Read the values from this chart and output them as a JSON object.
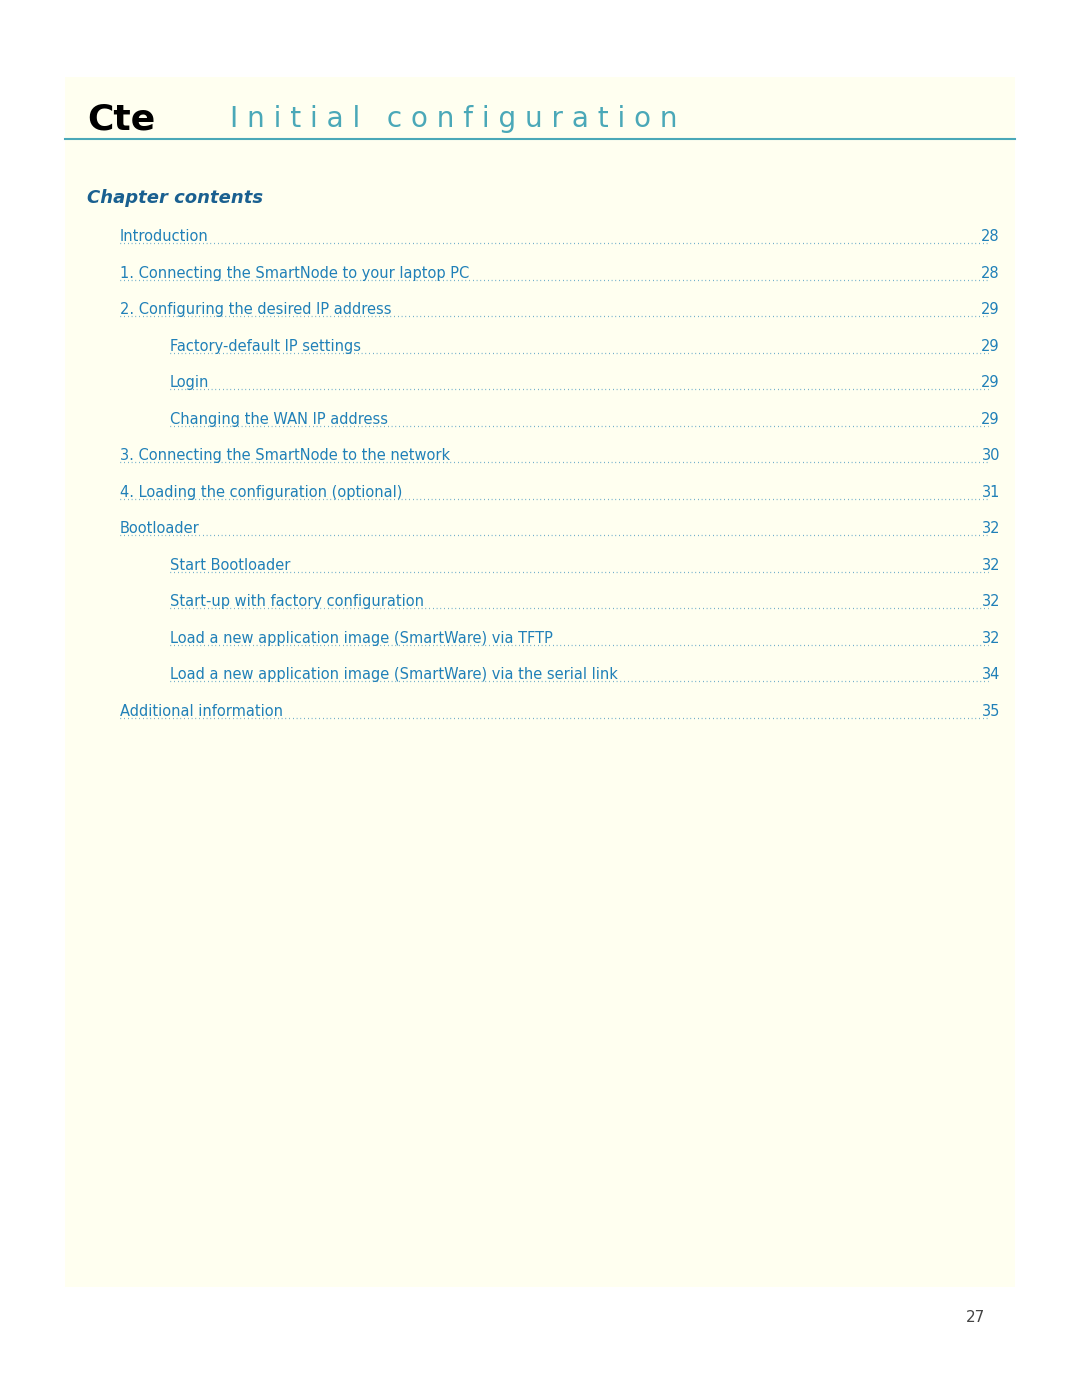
{
  "page_bg": "#ffffff",
  "content_bg": "#fffff0",
  "header_line_color": "#4aa8b8",
  "title_cte_color": "#000000",
  "title_main_color": "#4aa8b8",
  "title_cte_text": "Cte",
  "title_main_text": "I n i t i a l   c o n f i g u r a t i o n",
  "chapter_contents_text": "Chapter contents",
  "chapter_contents_color": "#1a6090",
  "toc_color": "#2080b8",
  "dot_color": "#2080b8",
  "page_number_text": "27",
  "page_number_color": "#444444",
  "toc_entries": [
    {
      "text": "Introduction",
      "indent": 1,
      "page": "28"
    },
    {
      "text": "1. Connecting the SmartNode to your laptop PC",
      "indent": 1,
      "page": "28"
    },
    {
      "text": "2. Configuring the desired IP address",
      "indent": 1,
      "page": "29"
    },
    {
      "text": "Factory-default IP settings",
      "indent": 2,
      "page": "29"
    },
    {
      "text": "Login",
      "indent": 2,
      "page": "29"
    },
    {
      "text": "Changing the WAN IP address",
      "indent": 2,
      "page": "29"
    },
    {
      "text": "3. Connecting the SmartNode to the network",
      "indent": 1,
      "page": "30"
    },
    {
      "text": "4. Loading the configuration (optional)",
      "indent": 1,
      "page": "31"
    },
    {
      "text": "Bootloader",
      "indent": 1,
      "page": "32"
    },
    {
      "text": "Start Bootloader",
      "indent": 2,
      "page": "32"
    },
    {
      "text": "Start-up with factory configuration",
      "indent": 2,
      "page": "32"
    },
    {
      "text": "Load a new application image (SmartWare) via TFTP",
      "indent": 2,
      "page": "32"
    },
    {
      "text": "Load a new application image (SmartWare) via the serial link",
      "indent": 2,
      "page": "34"
    },
    {
      "text": "Additional information",
      "indent": 1,
      "page": "35"
    }
  ]
}
